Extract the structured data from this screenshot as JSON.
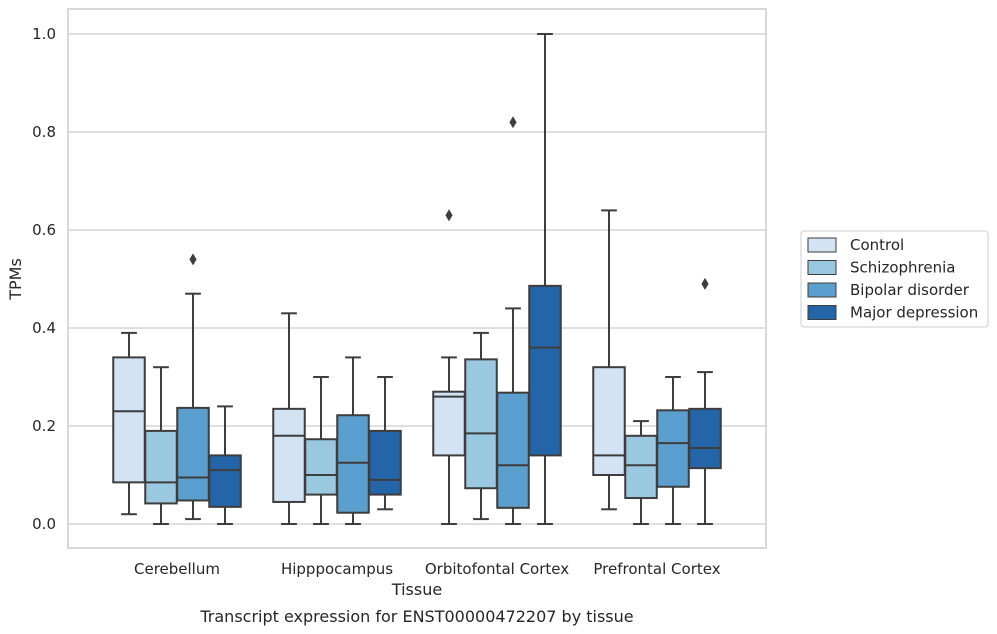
{
  "chart_data": {
    "type": "box",
    "caption": "Transcript expression for ENST00000472207 by tissue",
    "xlabel": "Tissue",
    "ylabel": "TPMs",
    "ylim": [
      -0.05,
      1.05
    ],
    "yticks": [
      0.0,
      0.2,
      0.4,
      0.6,
      0.8,
      1.0
    ],
    "ytick_labels": [
      "0.0",
      "0.2",
      "0.4",
      "0.6",
      "0.8",
      "1.0"
    ],
    "grid": "horizontal",
    "legend_position": "right",
    "categories": [
      "Cerebellum",
      "Hipppocampus",
      "Orbitofontal Cortex",
      "Prefrontal Cortex"
    ],
    "series": [
      {
        "name": "Control",
        "color": "#d2e3f3",
        "boxes": [
          {
            "whislo": 0.02,
            "q1": 0.085,
            "med": 0.23,
            "q3": 0.34,
            "whishi": 0.39,
            "fliers": []
          },
          {
            "whislo": 0.0,
            "q1": 0.045,
            "med": 0.18,
            "q3": 0.235,
            "whishi": 0.43,
            "fliers": []
          },
          {
            "whislo": 0.0,
            "q1": 0.14,
            "med": 0.26,
            "q3": 0.27,
            "whishi": 0.34,
            "fliers": [
              0.63
            ]
          },
          {
            "whislo": 0.03,
            "q1": 0.1,
            "med": 0.14,
            "q3": 0.32,
            "whishi": 0.64,
            "fliers": []
          }
        ]
      },
      {
        "name": "Schizophrenia",
        "color": "#9ac8e0",
        "boxes": [
          {
            "whislo": 0.0,
            "q1": 0.042,
            "med": 0.085,
            "q3": 0.19,
            "whishi": 0.32,
            "fliers": []
          },
          {
            "whislo": 0.0,
            "q1": 0.06,
            "med": 0.1,
            "q3": 0.173,
            "whishi": 0.3,
            "fliers": []
          },
          {
            "whislo": 0.01,
            "q1": 0.073,
            "med": 0.185,
            "q3": 0.336,
            "whishi": 0.39,
            "fliers": []
          },
          {
            "whislo": 0.0,
            "q1": 0.053,
            "med": 0.12,
            "q3": 0.18,
            "whishi": 0.21,
            "fliers": []
          }
        ]
      },
      {
        "name": "Bipolar disorder",
        "color": "#5a9fcd",
        "boxes": [
          {
            "whislo": 0.01,
            "q1": 0.048,
            "med": 0.095,
            "q3": 0.237,
            "whishi": 0.47,
            "fliers": [
              0.54
            ]
          },
          {
            "whislo": 0.0,
            "q1": 0.023,
            "med": 0.125,
            "q3": 0.222,
            "whishi": 0.34,
            "fliers": []
          },
          {
            "whislo": 0.0,
            "q1": 0.033,
            "med": 0.12,
            "q3": 0.268,
            "whishi": 0.44,
            "fliers": [
              0.82
            ]
          },
          {
            "whislo": 0.0,
            "q1": 0.076,
            "med": 0.165,
            "q3": 0.232,
            "whishi": 0.3,
            "fliers": []
          }
        ]
      },
      {
        "name": "Major depression",
        "color": "#2365a7",
        "boxes": [
          {
            "whislo": 0.0,
            "q1": 0.035,
            "med": 0.11,
            "q3": 0.14,
            "whishi": 0.24,
            "fliers": []
          },
          {
            "whislo": 0.03,
            "q1": 0.06,
            "med": 0.09,
            "q3": 0.19,
            "whishi": 0.3,
            "fliers": []
          },
          {
            "whislo": 0.0,
            "q1": 0.14,
            "med": 0.36,
            "q3": 0.486,
            "whishi": 1.0,
            "fliers": []
          },
          {
            "whislo": 0.0,
            "q1": 0.114,
            "med": 0.155,
            "q3": 0.235,
            "whishi": 0.31,
            "fliers": [
              0.49
            ]
          }
        ]
      }
    ]
  }
}
